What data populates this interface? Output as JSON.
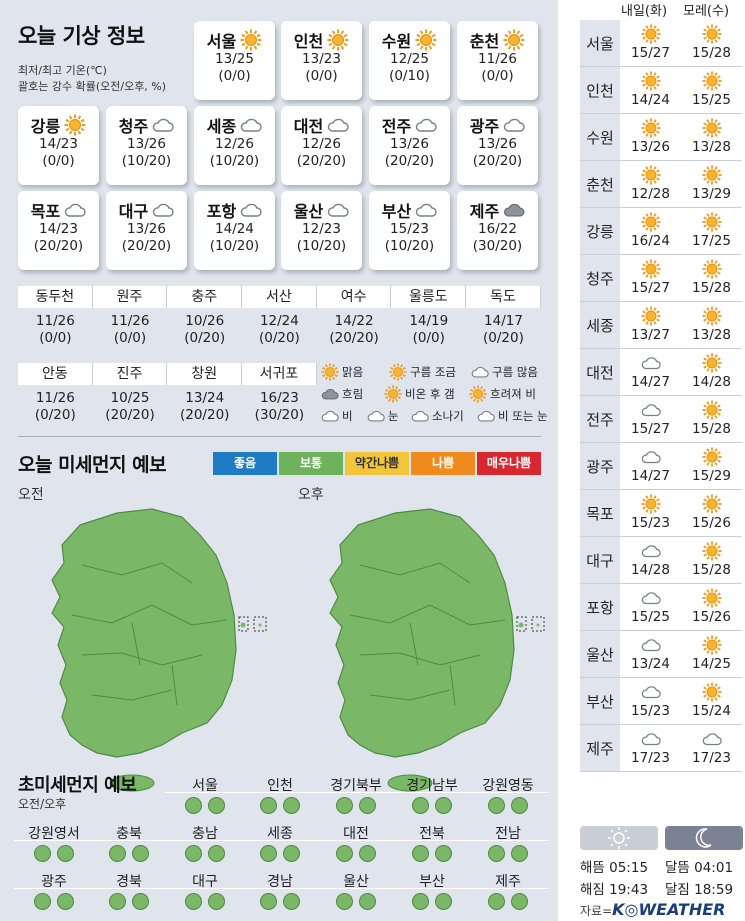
{
  "title": "오늘 기상 정보",
  "notes": [
    "최저/최고 기온(℃)",
    "괄호는 강수 확률(오전/오후, %)"
  ],
  "cities": [
    {
      "name": "서울",
      "temp": "13/25",
      "prob": "(0/0)",
      "icon": "sun"
    },
    {
      "name": "인천",
      "temp": "13/23",
      "prob": "(0/0)",
      "icon": "sun"
    },
    {
      "name": "수원",
      "temp": "12/25",
      "prob": "(0/10)",
      "icon": "sun"
    },
    {
      "name": "춘천",
      "temp": "11/26",
      "prob": "(0/0)",
      "icon": "sun"
    },
    {
      "name": "강릉",
      "temp": "14/23",
      "prob": "(0/0)",
      "icon": "sun"
    },
    {
      "name": "청주",
      "temp": "13/26",
      "prob": "(10/20)",
      "icon": "cloud-outline"
    },
    {
      "name": "세종",
      "temp": "12/26",
      "prob": "(10/20)",
      "icon": "cloud-outline"
    },
    {
      "name": "대전",
      "temp": "12/26",
      "prob": "(20/20)",
      "icon": "cloud-outline"
    },
    {
      "name": "전주",
      "temp": "13/26",
      "prob": "(20/20)",
      "icon": "cloud-outline"
    },
    {
      "name": "광주",
      "temp": "13/26",
      "prob": "(20/20)",
      "icon": "cloud-outline"
    },
    {
      "name": "목포",
      "temp": "14/23",
      "prob": "(20/20)",
      "icon": "cloud-outline"
    },
    {
      "name": "대구",
      "temp": "13/26",
      "prob": "(20/20)",
      "icon": "cloud-outline"
    },
    {
      "name": "포항",
      "temp": "14/24",
      "prob": "(10/20)",
      "icon": "cloud-outline"
    },
    {
      "name": "울산",
      "temp": "12/23",
      "prob": "(10/20)",
      "icon": "cloud-outline"
    },
    {
      "name": "부산",
      "temp": "15/23",
      "prob": "(10/20)",
      "icon": "cloud-outline"
    },
    {
      "name": "제주",
      "temp": "16/22",
      "prob": "(30/20)",
      "icon": "cloud-gray"
    }
  ],
  "small_row1": [
    {
      "name": "동두천",
      "temp": "11/26",
      "prob": "(0/0)"
    },
    {
      "name": "원주",
      "temp": "11/26",
      "prob": "(0/0)"
    },
    {
      "name": "충주",
      "temp": "10/26",
      "prob": "(0/20)"
    },
    {
      "name": "서산",
      "temp": "12/24",
      "prob": "(0/20)"
    },
    {
      "name": "여수",
      "temp": "14/22",
      "prob": "(20/20)"
    },
    {
      "name": "울릉도",
      "temp": "14/19",
      "prob": "(0/0)"
    },
    {
      "name": "독도",
      "temp": "14/17",
      "prob": "(0/20)"
    }
  ],
  "small_row2": [
    {
      "name": "안동",
      "temp": "11/26",
      "prob": "(0/20)"
    },
    {
      "name": "진주",
      "temp": "10/25",
      "prob": "(20/20)"
    },
    {
      "name": "창원",
      "temp": "13/24",
      "prob": "(20/20)"
    },
    {
      "name": "서귀포",
      "temp": "16/23",
      "prob": "(30/20)"
    }
  ],
  "legend": [
    "맑음",
    "구름 조금",
    "구름 많음",
    "흐림",
    "비온 후 갬",
    "흐려져 비",
    "비",
    "눈",
    "소나기",
    "비 또는 눈"
  ],
  "dust": {
    "title": "오늘 미세먼지 예보",
    "am": "오전",
    "pm": "오후",
    "scale": [
      {
        "label": "좋음",
        "color": "#1d7cc4"
      },
      {
        "label": "보통",
        "color": "#6fb25c"
      },
      {
        "label": "약간나쁨",
        "color": "#f2c53a"
      },
      {
        "label": "나쁨",
        "color": "#f08a1c"
      },
      {
        "label": "매우나쁨",
        "color": "#d7282f"
      }
    ],
    "map_color": "#7ab867"
  },
  "ultrafine": {
    "title": "초미세먼지 예보",
    "sub": "오전/오후",
    "row1": [
      "서울",
      "인천",
      "경기북부",
      "경기남부",
      "강원영동"
    ],
    "row2": [
      "강원영서",
      "충북",
      "충남",
      "세종",
      "대전",
      "전북",
      "전남"
    ],
    "row3": [
      "광주",
      "경북",
      "대구",
      "경남",
      "울산",
      "부산",
      "제주"
    ]
  },
  "forecast": {
    "col1": "내일(화)",
    "col2": "모레(수)",
    "rows": [
      {
        "city": "서울",
        "d1": "15/27",
        "i1": "sun",
        "d2": "15/28",
        "i2": "sun"
      },
      {
        "city": "인천",
        "d1": "14/24",
        "i1": "sun",
        "d2": "15/25",
        "i2": "sun"
      },
      {
        "city": "수원",
        "d1": "13/26",
        "i1": "sun",
        "d2": "13/28",
        "i2": "sun"
      },
      {
        "city": "춘천",
        "d1": "12/28",
        "i1": "sun",
        "d2": "13/29",
        "i2": "sun"
      },
      {
        "city": "강릉",
        "d1": "16/24",
        "i1": "sun",
        "d2": "17/25",
        "i2": "sun"
      },
      {
        "city": "청주",
        "d1": "15/27",
        "i1": "sun",
        "d2": "15/28",
        "i2": "sun"
      },
      {
        "city": "세종",
        "d1": "13/27",
        "i1": "sun",
        "d2": "13/28",
        "i2": "sun"
      },
      {
        "city": "대전",
        "d1": "14/27",
        "i1": "cloud-outline",
        "d2": "14/28",
        "i2": "sun"
      },
      {
        "city": "전주",
        "d1": "15/27",
        "i1": "cloud-outline",
        "d2": "15/28",
        "i2": "sun"
      },
      {
        "city": "광주",
        "d1": "14/27",
        "i1": "cloud-outline",
        "d2": "15/29",
        "i2": "sun"
      },
      {
        "city": "목포",
        "d1": "15/23",
        "i1": "sun",
        "d2": "15/26",
        "i2": "sun"
      },
      {
        "city": "대구",
        "d1": "14/28",
        "i1": "cloud-outline",
        "d2": "15/28",
        "i2": "sun"
      },
      {
        "city": "포항",
        "d1": "15/25",
        "i1": "cloud-outline",
        "d2": "15/26",
        "i2": "sun"
      },
      {
        "city": "울산",
        "d1": "13/24",
        "i1": "cloud-outline",
        "d2": "14/25",
        "i2": "sun"
      },
      {
        "city": "부산",
        "d1": "15/23",
        "i1": "cloud-outline",
        "d2": "15/24",
        "i2": "sun"
      },
      {
        "city": "제주",
        "d1": "17/23",
        "i1": "cloud-outline",
        "d2": "17/23",
        "i2": "cloud-outline"
      }
    ]
  },
  "sun": {
    "rise": "해뜸 05:15",
    "set": "해짐 19:43",
    "moonrise": "달뜸 04:01",
    "moonset": "달짐 18:59"
  },
  "credit": {
    "prefix": "자료=",
    "brand": "K◎WEATHER"
  }
}
